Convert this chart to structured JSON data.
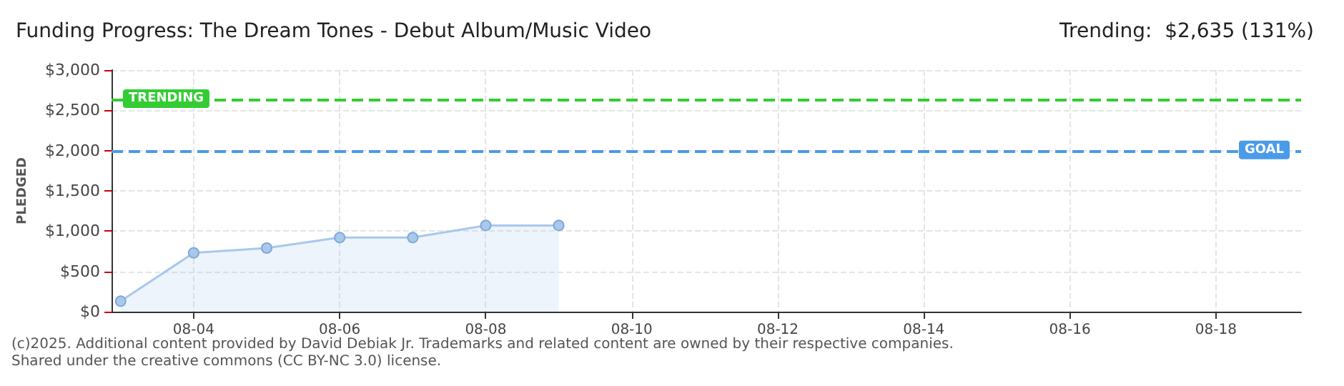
{
  "chart_data": {
    "type": "area",
    "title": "Funding Progress: The Dream Tones - Debut Album/Music Video",
    "subtitle": "Trending:  $2,635 (131%)",
    "ylabel": "PLEDGED",
    "x": [
      "--08-03",
      "--08-04",
      "--08-05",
      "--08-06",
      "--08-07",
      "--08-08",
      "--08-09"
    ],
    "series": [
      {
        "color": "#a8c8ec",
        "values": [
          130,
          730,
          790,
          920,
          920,
          1070,
          1070
        ]
      }
    ],
    "xlim": [
      "--08-02T21:00",
      "--08-19T04:00"
    ],
    "xticks": [
      {
        "value": "--08-04",
        "label": "08-04"
      },
      {
        "value": "--08-06",
        "label": "08-06"
      },
      {
        "value": "--08-08",
        "label": "08-08"
      },
      {
        "value": "--08-10",
        "label": "08-10"
      },
      {
        "value": "--08-12",
        "label": "08-12"
      },
      {
        "value": "--08-14",
        "label": "08-14"
      },
      {
        "value": "--08-16",
        "label": "08-16"
      },
      {
        "value": "--08-18",
        "label": "08-18"
      }
    ],
    "ylim": [
      0,
      3000
    ],
    "yticks": [
      {
        "value": 0,
        "label": "$0"
      },
      {
        "value": 500,
        "label": "$500"
      },
      {
        "value": 1000,
        "label": "$1,000"
      },
      {
        "value": 1500,
        "label": "$1,500"
      },
      {
        "value": 2000,
        "label": "$2,000"
      },
      {
        "value": 2500,
        "label": "$2,500"
      },
      {
        "value": 3000,
        "label": "$3,000"
      }
    ],
    "ref_lines": [
      {
        "axis": "y",
        "value": 2635,
        "label": "TRENDING",
        "color": "#33cc33",
        "line_style": "dashed"
      },
      {
        "axis": "y",
        "value": 2000,
        "label": "GOAL",
        "color": "#4a9be8",
        "line_style": "dashed"
      }
    ],
    "annotations": [
      "(c)2025. Additional content provided by David Debiak Jr. Trademarks and related content are owned by their respective companies.",
      "Shared under the creative commons (CC BY-NC 3.0) license."
    ],
    "grid": true,
    "marker": "circle",
    "line_style": "solid"
  }
}
